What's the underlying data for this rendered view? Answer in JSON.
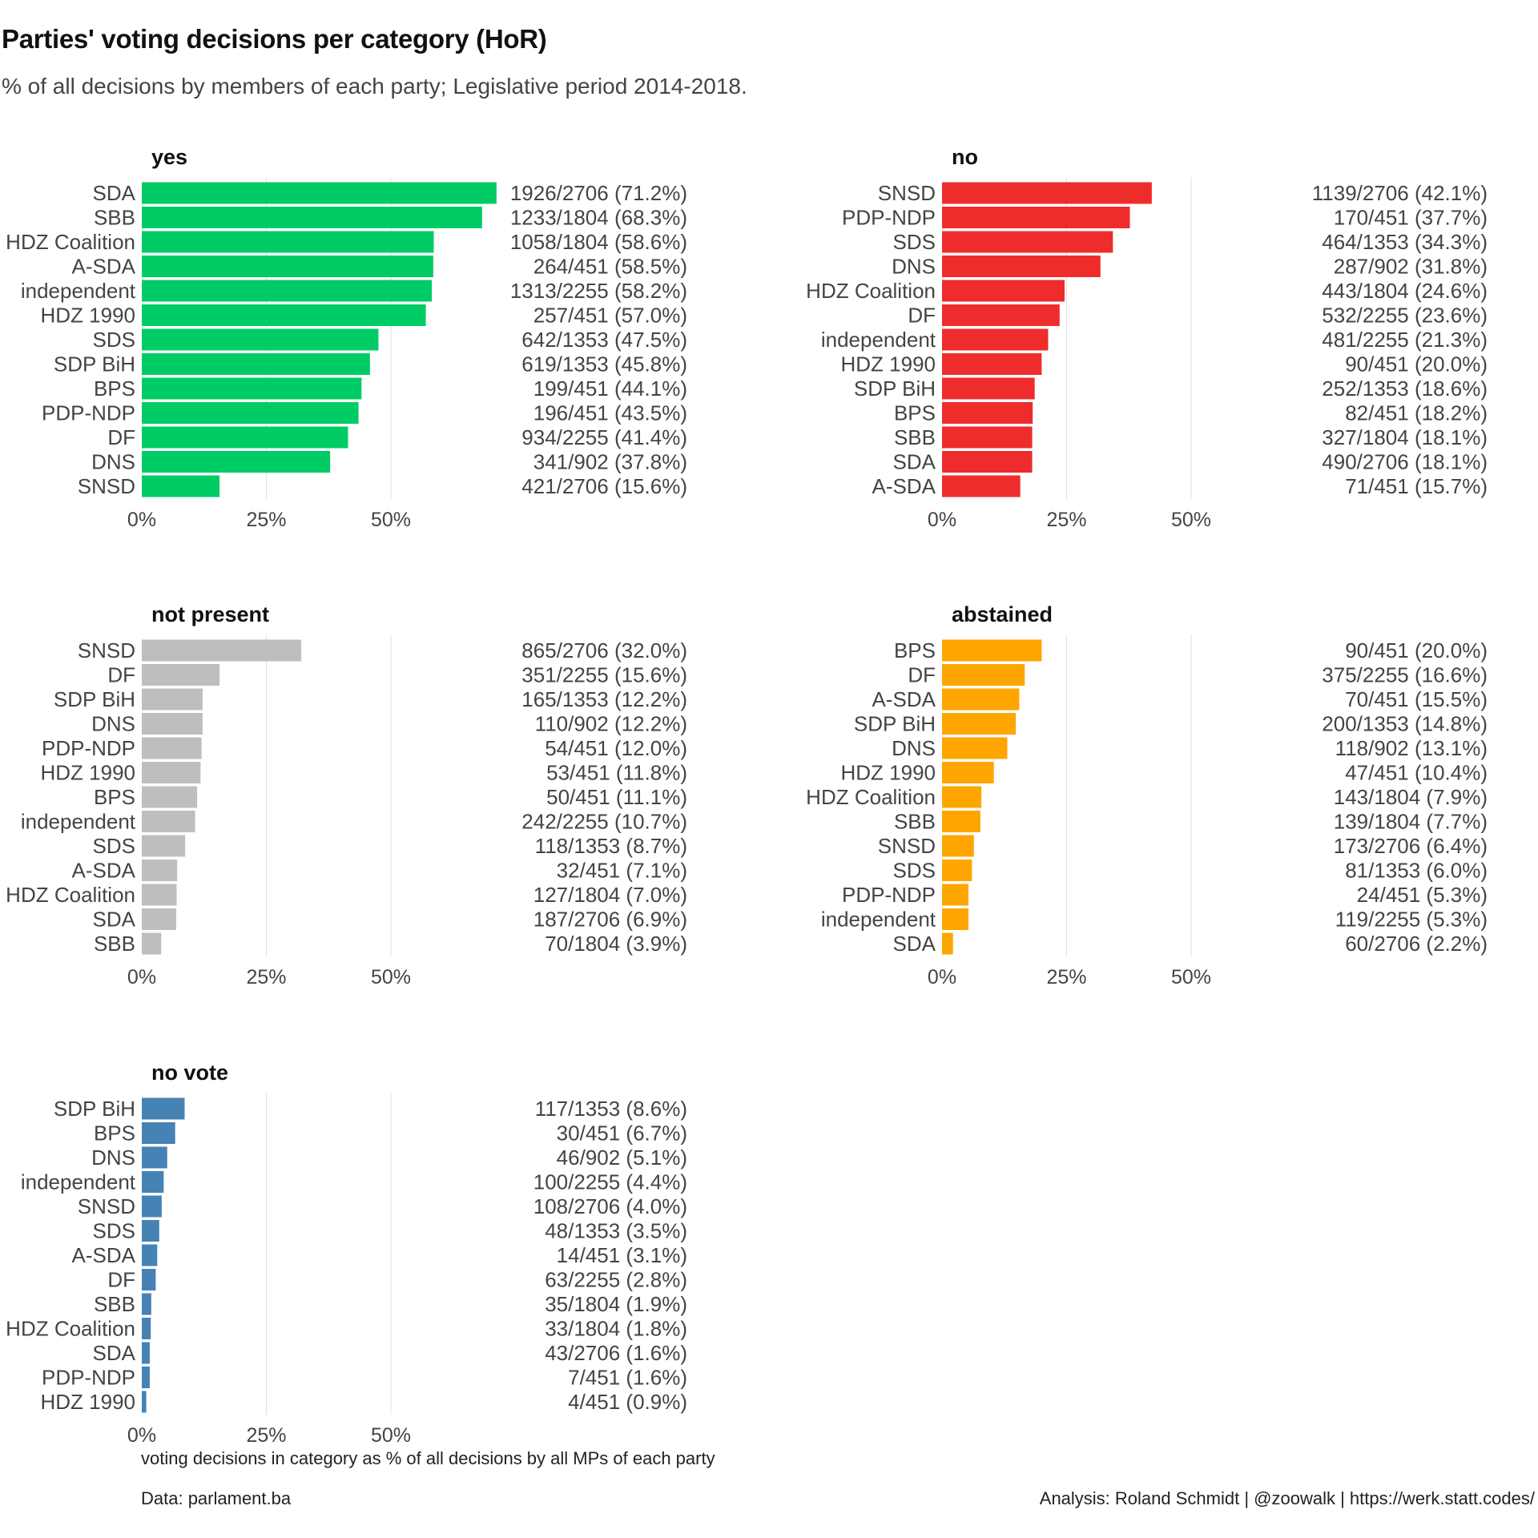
{
  "title": "Parties' voting decisions per category (HoR)",
  "subtitle": "% of all decisions by members of each party; Legislative period 2014-2018.",
  "x_caption": "voting decisions in category as % of all decisions by all MPs of each party",
  "source": "Data: parlament.ba",
  "credit": "Analysis: Roland Schmidt | @zoowalk | https://werk.statt.codes/",
  "chart_data": [
    {
      "type": "bar",
      "orientation": "horizontal",
      "facet": "yes",
      "color": "#00cc66",
      "xlim": [
        0,
        0.75
      ],
      "x_ticks": [
        "0%",
        "25%",
        "50%"
      ],
      "categories": [
        "SDA",
        "SBB",
        "HDZ Coalition",
        "A-SDA",
        "independent",
        "HDZ 1990",
        "SDS",
        "SDP BiH",
        "BPS",
        "PDP-NDP",
        "DF",
        "DNS",
        "SNSD"
      ],
      "values": [
        0.712,
        0.683,
        0.586,
        0.585,
        0.582,
        0.57,
        0.475,
        0.458,
        0.441,
        0.435,
        0.414,
        0.378,
        0.156
      ],
      "labels": [
        "1926/2706 (71.2%)",
        "1233/1804 (68.3%)",
        "1058/1804 (58.6%)",
        "264/451 (58.5%)",
        "1313/2255 (58.2%)",
        "257/451 (57.0%)",
        "642/1353 (47.5%)",
        "619/1353 (45.8%)",
        "199/451 (44.1%)",
        "196/451 (43.5%)",
        "934/2255 (41.4%)",
        "341/902 (37.8%)",
        "421/2706 (15.6%)"
      ]
    },
    {
      "type": "bar",
      "orientation": "horizontal",
      "facet": "no",
      "color": "#ee2c2c",
      "xlim": [
        0,
        0.75
      ],
      "x_ticks": [
        "0%",
        "25%",
        "50%"
      ],
      "categories": [
        "SNSD",
        "PDP-NDP",
        "SDS",
        "DNS",
        "HDZ Coalition",
        "DF",
        "independent",
        "HDZ 1990",
        "SDP BiH",
        "BPS",
        "SBB",
        "SDA",
        "A-SDA"
      ],
      "values": [
        0.421,
        0.377,
        0.343,
        0.318,
        0.246,
        0.236,
        0.213,
        0.2,
        0.186,
        0.182,
        0.181,
        0.181,
        0.157
      ],
      "labels": [
        "1139/2706 (42.1%)",
        "170/451 (37.7%)",
        "464/1353 (34.3%)",
        "287/902 (31.8%)",
        "443/1804 (24.6%)",
        "532/2255 (23.6%)",
        "481/2255 (21.3%)",
        "90/451 (20.0%)",
        "252/1353 (18.6%)",
        "82/451 (18.2%)",
        "327/1804 (18.1%)",
        "490/2706 (18.1%)",
        "71/451 (15.7%)"
      ]
    },
    {
      "type": "bar",
      "orientation": "horizontal",
      "facet": "not present",
      "color": "#bebebe",
      "xlim": [
        0,
        0.75
      ],
      "x_ticks": [
        "0%",
        "25%",
        "50%"
      ],
      "categories": [
        "SNSD",
        "DF",
        "SDP BiH",
        "DNS",
        "PDP-NDP",
        "HDZ 1990",
        "BPS",
        "independent",
        "SDS",
        "A-SDA",
        "HDZ Coalition",
        "SDA",
        "SBB"
      ],
      "values": [
        0.32,
        0.156,
        0.122,
        0.122,
        0.12,
        0.118,
        0.111,
        0.107,
        0.087,
        0.071,
        0.07,
        0.069,
        0.039
      ],
      "labels": [
        "865/2706 (32.0%)",
        "351/2255 (15.6%)",
        "165/1353 (12.2%)",
        "110/902 (12.2%)",
        "54/451 (12.0%)",
        "53/451 (11.8%)",
        "50/451 (11.1%)",
        "242/2255 (10.7%)",
        "118/1353 (8.7%)",
        "32/451 (7.1%)",
        "127/1804 (7.0%)",
        "187/2706 (6.9%)",
        "70/1804 (3.9%)"
      ]
    },
    {
      "type": "bar",
      "orientation": "horizontal",
      "facet": "abstained",
      "color": "#ffa500",
      "xlim": [
        0,
        0.75
      ],
      "x_ticks": [
        "0%",
        "25%",
        "50%"
      ],
      "categories": [
        "BPS",
        "DF",
        "A-SDA",
        "SDP BiH",
        "DNS",
        "HDZ 1990",
        "HDZ Coalition",
        "SBB",
        "SNSD",
        "SDS",
        "PDP-NDP",
        "independent",
        "SDA"
      ],
      "values": [
        0.2,
        0.166,
        0.155,
        0.148,
        0.131,
        0.104,
        0.079,
        0.077,
        0.064,
        0.06,
        0.053,
        0.053,
        0.022
      ],
      "labels": [
        "90/451 (20.0%)",
        "375/2255 (16.6%)",
        "70/451 (15.5%)",
        "200/1353 (14.8%)",
        "118/902 (13.1%)",
        "47/451 (10.4%)",
        "143/1804 (7.9%)",
        "139/1804 (7.7%)",
        "173/2706 (6.4%)",
        "81/1353 (6.0%)",
        "24/451 (5.3%)",
        "119/2255 (5.3%)",
        "60/2706 (2.2%)"
      ]
    },
    {
      "type": "bar",
      "orientation": "horizontal",
      "facet": "no vote",
      "color": "#4682b4",
      "xlim": [
        0,
        0.75
      ],
      "x_ticks": [
        "0%",
        "25%",
        "50%"
      ],
      "categories": [
        "SDP BiH",
        "BPS",
        "DNS",
        "independent",
        "SNSD",
        "SDS",
        "A-SDA",
        "DF",
        "SBB",
        "HDZ Coalition",
        "SDA",
        "PDP-NDP",
        "HDZ 1990"
      ],
      "values": [
        0.086,
        0.067,
        0.051,
        0.044,
        0.04,
        0.035,
        0.031,
        0.028,
        0.019,
        0.018,
        0.016,
        0.016,
        0.009
      ],
      "labels": [
        "117/1353 (8.6%)",
        "30/451 (6.7%)",
        "46/902 (5.1%)",
        "100/2255 (4.4%)",
        "108/2706 (4.0%)",
        "48/1353 (3.5%)",
        "14/451 (3.1%)",
        "63/2255 (2.8%)",
        "35/1804 (1.9%)",
        "33/1804 (1.8%)",
        "43/2706 (1.6%)",
        "7/451 (1.6%)",
        "4/451 (0.9%)"
      ]
    }
  ]
}
